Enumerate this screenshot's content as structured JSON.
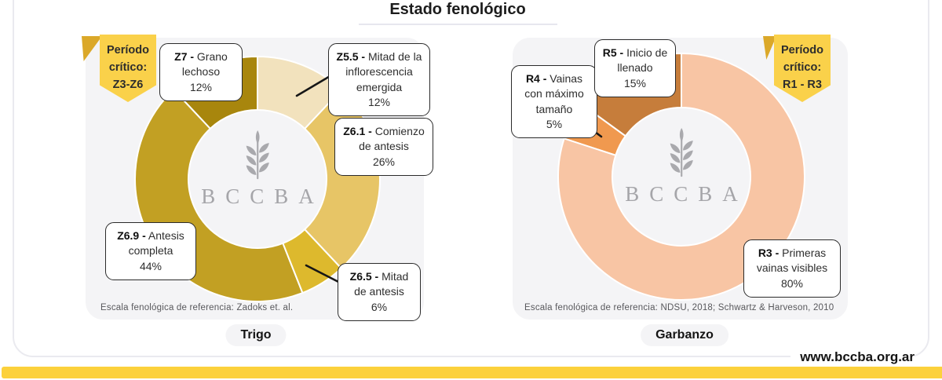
{
  "title": "Estado fenológico",
  "site_url": "www.bccba.org.ar",
  "watermark": "BCCBA",
  "colors": {
    "pennant_yellow": "#fad14a",
    "pennant_fold": "#dba829",
    "footer_bar_yellow": "#fcd13c",
    "panel_background": "#f4f4f6",
    "watermark_gray": "#a5a5a9"
  },
  "chart_data": [
    {
      "type": "pie",
      "crop": "Trigo",
      "legend_position": "callouts",
      "critical_period": {
        "line1": "Período",
        "line2": "crítico:",
        "line3": "Z3-Z6"
      },
      "footnote": "Escala fenológica de referencia: Zadoks et. al.",
      "slices": [
        {
          "code_label": "Z5.5 -",
          "desc": "Mitad de la inflorescencia emergida",
          "pct": 12,
          "pct_label": "12%",
          "color": "#f2e2bd"
        },
        {
          "code_label": "Z6.1 -",
          "desc": "Comienzo de antesis",
          "pct": 26,
          "pct_label": "26%",
          "color": "#e7c566"
        },
        {
          "code_label": "Z6.5 -",
          "desc": "Mitad de antesis",
          "pct": 6,
          "pct_label": "6%",
          "color": "#ddb92d"
        },
        {
          "code_label": "Z6.9 -",
          "desc": "Antesis completa",
          "pct": 44,
          "pct_label": "44%",
          "color": "#c2a023"
        },
        {
          "code_label": "Z7 -",
          "desc": "Grano lechoso",
          "pct": 12,
          "pct_label": "12%",
          "color": "#a8860d"
        }
      ]
    },
    {
      "type": "pie",
      "crop": "Garbanzo",
      "legend_position": "callouts",
      "critical_period": {
        "line1": "Período",
        "line2": "crítico:",
        "line3": "R1 - R3"
      },
      "footnote": "Escala fenológica de referencia: NDSU, 2018; Schwartz & Harveson, 2010",
      "slices": [
        {
          "code_label": "R3 -",
          "desc": "Primeras vainas visibles",
          "pct": 80,
          "pct_label": "80%",
          "color": "#f8c5a4"
        },
        {
          "code_label": "R4 -",
          "desc": "Vainas con máximo tamaño",
          "pct": 5,
          "pct_label": "5%",
          "color": "#f0994f"
        },
        {
          "code_label": "R5 -",
          "desc": "Inicio de llenado",
          "pct": 15,
          "pct_label": "15%",
          "color": "#c67d3b"
        }
      ]
    }
  ]
}
